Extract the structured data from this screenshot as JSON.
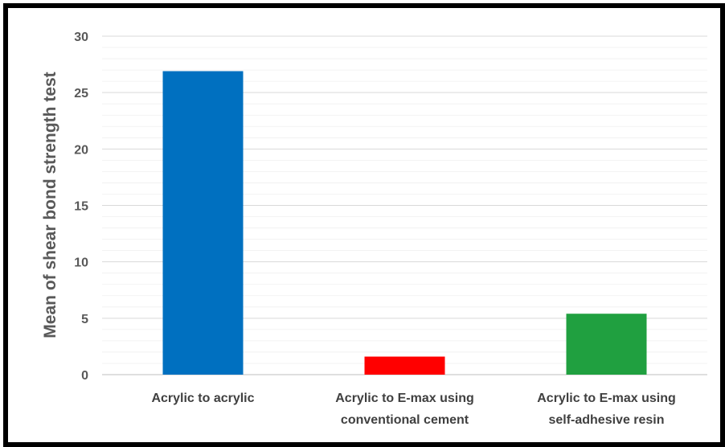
{
  "chart_data": {
    "type": "bar",
    "title": "",
    "xlabel": "",
    "ylabel": "Mean of shear bond strength test",
    "ylim": [
      0,
      30
    ],
    "yticks": [
      0,
      5,
      10,
      15,
      20,
      25,
      30
    ],
    "grid": true,
    "categories": [
      [
        "Acrylic to acrylic"
      ],
      [
        "Acrylic to E-max  using",
        "conventional cement"
      ],
      [
        "Acrylic to  E-max using",
        "self-adhesive resin"
      ]
    ],
    "values": [
      26.9,
      1.6,
      5.4
    ],
    "colors": [
      "#0070C0",
      "#FF0000",
      "#20A040"
    ]
  }
}
